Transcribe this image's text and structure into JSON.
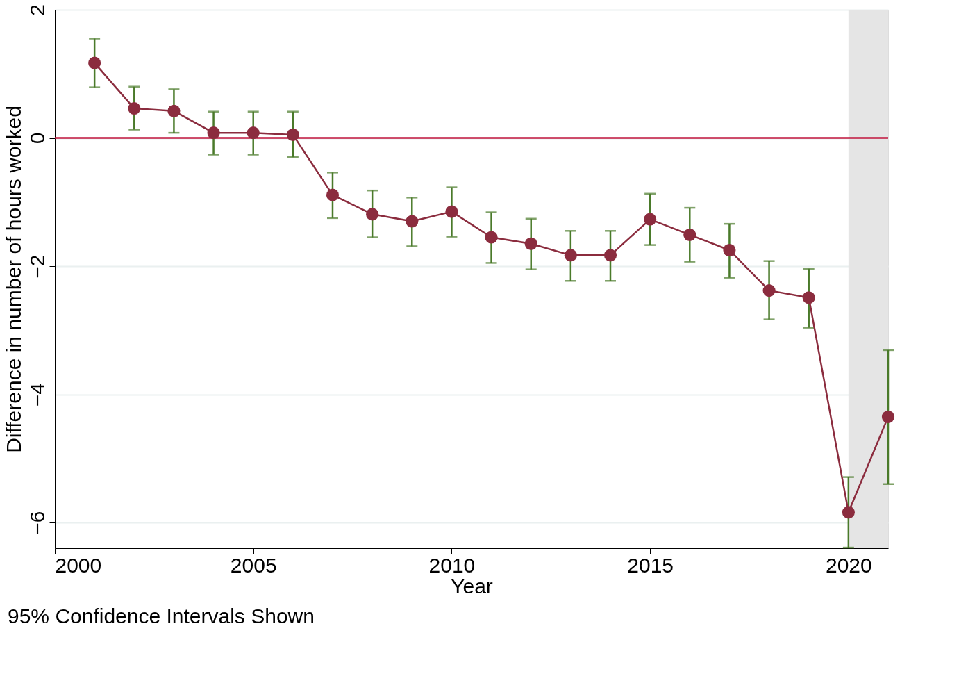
{
  "chart_data": {
    "type": "line",
    "xlabel": "Year",
    "ylabel": "Difference in number of hours worked",
    "x": [
      2001,
      2002,
      2003,
      2004,
      2005,
      2006,
      2007,
      2008,
      2009,
      2010,
      2011,
      2012,
      2013,
      2014,
      2015,
      2016,
      2017,
      2018,
      2019,
      2020,
      2021
    ],
    "series": [
      {
        "color": "#8b2c3e",
        "values": [
          1.17,
          0.46,
          0.42,
          0.08,
          0.08,
          0.05,
          -0.89,
          -1.19,
          -1.3,
          -1.15,
          -1.55,
          -1.65,
          -1.83,
          -1.83,
          -1.27,
          -1.51,
          -1.75,
          -2.38,
          -2.49,
          -5.84,
          -4.35
        ],
        "errors": [
          [
            0.79,
            1.55
          ],
          [
            0.13,
            0.8
          ],
          [
            0.08,
            0.76
          ],
          [
            -0.26,
            0.41
          ],
          [
            -0.26,
            0.41
          ],
          [
            -0.3,
            0.41
          ],
          [
            -1.25,
            -0.54
          ],
          [
            -1.55,
            -0.82
          ],
          [
            -1.69,
            -0.93
          ],
          [
            -1.54,
            -0.77
          ],
          [
            -1.95,
            -1.16
          ],
          [
            -2.05,
            -1.26
          ],
          [
            -2.23,
            -1.45
          ],
          [
            -2.23,
            -1.45
          ],
          [
            -1.67,
            -0.87
          ],
          [
            -1.93,
            -1.09
          ],
          [
            -2.18,
            -1.34
          ],
          [
            -2.83,
            -1.92
          ],
          [
            -2.96,
            -2.04
          ],
          [
            -6.39,
            -5.29
          ],
          [
            -5.4,
            -3.31
          ]
        ]
      }
    ],
    "marker": "circle",
    "line_style": "solid",
    "grid": "y",
    "xlim": [
      2000,
      2021
    ],
    "xticks": [
      2000,
      2005,
      2010,
      2015,
      2020
    ],
    "ylim": [
      -6.4,
      2
    ],
    "yticks": [
      -6,
      -4,
      -2,
      0,
      2
    ],
    "ref_lines": [
      {
        "axis": "y",
        "value": 0,
        "color": "#c0143c"
      }
    ],
    "bands": [
      {
        "axis": "x",
        "from": 2020,
        "to": 2021,
        "color": "#e5e5e5"
      }
    ],
    "annotations": [
      "95% Confidence Intervals Shown"
    ]
  }
}
